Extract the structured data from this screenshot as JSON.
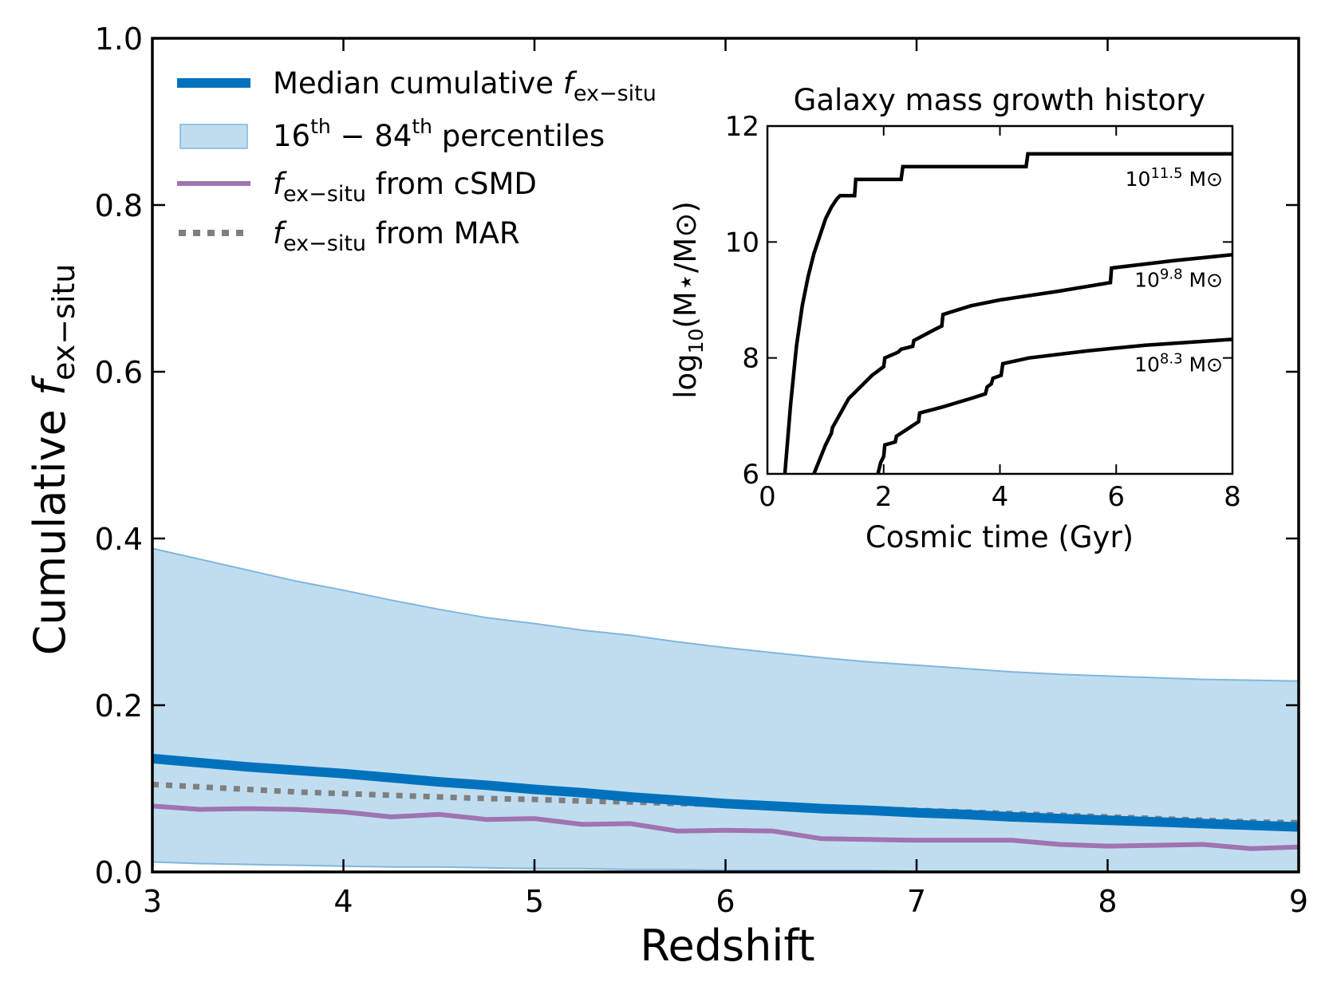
{
  "chart_data": [
    {
      "type": "line",
      "title": "",
      "xlabel": "Redshift",
      "ylabel_prefix": "Cumulative ",
      "ylabel_var": "f",
      "ylabel_sub": "ex−situ",
      "xlim": [
        3,
        9
      ],
      "ylim": [
        0,
        1
      ],
      "xticks": [
        3,
        4,
        5,
        6,
        7,
        8,
        9
      ],
      "xtick_labels": [
        "3",
        "4",
        "5",
        "6",
        "7",
        "8",
        "9"
      ],
      "yticks": [
        0.0,
        0.2,
        0.4,
        0.6,
        0.8,
        1.0
      ],
      "ytick_labels": [
        "0.0",
        "0.2",
        "0.4",
        "0.6",
        "0.8",
        "1.0"
      ],
      "legend_position": "top-left",
      "legend": [
        {
          "text": "Median cumulative ",
          "var": "f",
          "sub": "ex−situ",
          "post": "",
          "kind": "thick-line"
        },
        {
          "pre": "16",
          "sup1": "th",
          "mid": " − 84",
          "sup2": "th",
          "post": " percentiles",
          "kind": "patch"
        },
        {
          "text": "",
          "var": "f",
          "sub": "ex−situ",
          "post": " from cSMD",
          "kind": "line"
        },
        {
          "text": "",
          "var": "f",
          "sub": "ex−situ",
          "post": " from MAR",
          "kind": "dotted"
        }
      ],
      "colors": {
        "median": "#0072bd",
        "band_fill": "#c0ddf0",
        "band_edge": "#7fb7dc",
        "csmd": "#9f74b1",
        "mar": "#7f7f7f"
      },
      "x": [
        3.0,
        3.25,
        3.5,
        3.75,
        4.0,
        4.25,
        4.5,
        4.75,
        5.0,
        5.25,
        5.5,
        5.75,
        6.0,
        6.25,
        6.5,
        6.75,
        7.0,
        7.25,
        7.5,
        7.75,
        8.0,
        8.25,
        8.5,
        8.75,
        9.0
      ],
      "series": [
        {
          "name": "16th-84th upper",
          "values": [
            0.388,
            0.375,
            0.362,
            0.349,
            0.338,
            0.326,
            0.315,
            0.305,
            0.298,
            0.29,
            0.284,
            0.276,
            0.269,
            0.263,
            0.257,
            0.252,
            0.248,
            0.244,
            0.24,
            0.237,
            0.235,
            0.233,
            0.231,
            0.23,
            0.229
          ]
        },
        {
          "name": "16th-84th lower",
          "values": [
            0.012,
            0.01,
            0.009,
            0.008,
            0.007,
            0.006,
            0.006,
            0.005,
            0.004,
            0.004,
            0.003,
            0.003,
            0.002,
            0.002,
            0.002,
            0.002,
            0.001,
            0.001,
            0.001,
            0.001,
            0.001,
            0.001,
            0.001,
            0.001,
            0.001
          ]
        },
        {
          "name": "Median cumulative f_ex-situ",
          "values": [
            0.136,
            0.131,
            0.126,
            0.122,
            0.118,
            0.113,
            0.108,
            0.104,
            0.099,
            0.095,
            0.09,
            0.086,
            0.082,
            0.079,
            0.076,
            0.074,
            0.071,
            0.069,
            0.066,
            0.064,
            0.062,
            0.06,
            0.058,
            0.056,
            0.054
          ]
        },
        {
          "name": "f_ex-situ from MAR",
          "values": [
            0.105,
            0.102,
            0.099,
            0.096,
            0.094,
            0.092,
            0.09,
            0.088,
            0.087,
            0.085,
            0.084,
            0.082,
            0.081,
            0.079,
            0.077,
            0.076,
            0.074,
            0.072,
            0.07,
            0.068,
            0.066,
            0.064,
            0.062,
            0.06,
            0.059
          ]
        },
        {
          "name": "f_ex-situ from cSMD",
          "values": [
            0.079,
            0.075,
            0.076,
            0.075,
            0.072,
            0.066,
            0.069,
            0.063,
            0.064,
            0.057,
            0.058,
            0.049,
            0.05,
            0.049,
            0.04,
            0.039,
            0.038,
            0.038,
            0.038,
            0.033,
            0.031,
            0.032,
            0.033,
            0.028,
            0.03
          ]
        }
      ]
    },
    {
      "type": "line",
      "title": "Galaxy mass growth history",
      "xlabel": "Cosmic time (Gyr)",
      "ylabel_pre": "log",
      "ylabel_sub": "10",
      "ylabel_post": "(M⋆/M⊙)",
      "xlim": [
        0,
        8
      ],
      "ylim": [
        6,
        12
      ],
      "xticks": [
        0,
        2,
        4,
        6,
        8
      ],
      "xtick_labels": [
        "0",
        "2",
        "4",
        "6",
        "8"
      ],
      "yticks": [
        6,
        8,
        10,
        12
      ],
      "ytick_labels": [
        "6",
        "8",
        "10",
        "12"
      ],
      "series": [
        {
          "name": "10^11.5 M⊙",
          "label_base": "10",
          "label_exp": "11.5",
          "label_unit": " M⊙",
          "x": [
            0.3,
            0.4,
            0.5,
            0.6,
            0.7,
            0.8,
            0.9,
            1.0,
            1.1,
            1.2,
            1.25,
            1.5,
            1.52,
            2.3,
            2.33,
            4.45,
            4.48,
            8.0
          ],
          "y": [
            6.0,
            7.2,
            8.2,
            8.9,
            9.4,
            9.8,
            10.1,
            10.4,
            10.6,
            10.75,
            10.8,
            10.8,
            11.08,
            11.08,
            11.3,
            11.3,
            11.52,
            11.52
          ]
        },
        {
          "name": "10^9.8 M⊙",
          "label_base": "10",
          "label_exp": "9.8",
          "label_unit": " M⊙",
          "x": [
            0.8,
            1.0,
            1.1,
            1.12,
            1.4,
            1.8,
            2.0,
            2.02,
            2.25,
            2.3,
            2.5,
            2.52,
            2.9,
            3.0,
            3.02,
            3.5,
            4.0,
            5.0,
            5.9,
            5.92,
            7.0,
            8.0
          ],
          "y": [
            6.0,
            6.5,
            6.7,
            6.8,
            7.3,
            7.7,
            7.85,
            8.0,
            8.1,
            8.15,
            8.2,
            8.3,
            8.5,
            8.55,
            8.75,
            8.9,
            9.0,
            9.15,
            9.3,
            9.55,
            9.68,
            9.78
          ]
        },
        {
          "name": "10^8.3 M⊙",
          "label_base": "10",
          "label_exp": "8.3",
          "label_unit": " M⊙",
          "x": [
            1.9,
            1.95,
            2.0,
            2.02,
            2.2,
            2.22,
            2.6,
            2.62,
            3.0,
            3.5,
            3.75,
            3.78,
            3.85,
            3.88,
            4.02,
            4.05,
            4.5,
            5.5,
            6.5,
            8.0
          ],
          "y": [
            6.0,
            6.2,
            6.3,
            6.5,
            6.55,
            6.65,
            6.9,
            7.05,
            7.15,
            7.3,
            7.38,
            7.5,
            7.55,
            7.65,
            7.7,
            7.9,
            8.0,
            8.12,
            8.22,
            8.32
          ]
        }
      ]
    }
  ]
}
